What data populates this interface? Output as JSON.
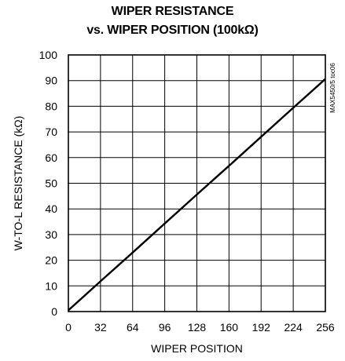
{
  "chart_data": {
    "type": "line",
    "title_line1": "WIPER RESISTANCE",
    "title_line2": "vs. WIPER POSITION (100kΩ)",
    "xlabel": "WIPER POSITION",
    "ylabel": "W-TO-L RESISTANCE (kΩ)",
    "side_label": "MAX5450/5 toc06",
    "xlim": [
      0,
      256
    ],
    "ylim": [
      0,
      100
    ],
    "x_ticks": [
      0,
      32,
      64,
      96,
      128,
      160,
      192,
      224,
      256
    ],
    "y_ticks": [
      0,
      10,
      20,
      30,
      40,
      50,
      60,
      70,
      80,
      90,
      100
    ],
    "grid": true,
    "series": [
      {
        "x": [
          0,
          32,
          64,
          96,
          128,
          160,
          192,
          224,
          256
        ],
        "y": [
          0.5,
          11.8,
          23.0,
          34.3,
          45.6,
          56.8,
          68.1,
          79.4,
          90.6
        ]
      }
    ],
    "line_color": "#000000"
  }
}
